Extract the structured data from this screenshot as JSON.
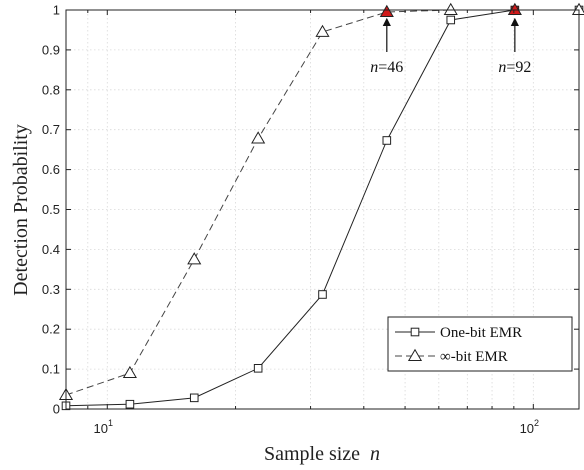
{
  "chart_data": {
    "type": "line",
    "xlabel": "Sample size",
    "xlabel_var": "n",
    "ylabel": "Detection Probability",
    "xscale": "log",
    "xlim": [
      8,
      128
    ],
    "ylim": [
      0,
      1
    ],
    "x_ticks": [
      10,
      100
    ],
    "x_tick_labels": [
      {
        "base": "10",
        "exp": "1"
      },
      {
        "base": "10",
        "exp": "2"
      }
    ],
    "y_ticks": [
      0,
      0.1,
      0.2,
      0.3,
      0.4,
      0.5,
      0.6,
      0.7,
      0.8,
      0.9,
      1
    ],
    "y_tick_labels": [
      "0",
      "0.1",
      "0.2",
      "0.3",
      "0.4",
      "0.5",
      "0.6",
      "0.7",
      "0.8",
      "0.9",
      "1"
    ],
    "grid": true,
    "legend_position": "bottom-right",
    "series": [
      {
        "name": "One-bit EMR",
        "marker": "square",
        "line_style": "solid",
        "color": "#222222",
        "x": [
          8,
          11.3,
          16,
          22.6,
          32,
          45.3,
          64,
          90.5,
          128
        ],
        "y": [
          0.008,
          0.012,
          0.028,
          0.102,
          0.287,
          0.673,
          0.975,
          1.0,
          1.0
        ]
      },
      {
        "name": "∞-bit EMR",
        "marker": "triangle",
        "line_style": "dashed",
        "color": "#444444",
        "x": [
          8,
          11.3,
          16,
          22.6,
          32,
          45.3,
          64,
          90.5,
          128
        ],
        "y": [
          0.035,
          0.09,
          0.375,
          0.678,
          0.945,
          0.995,
          1.0,
          1.0,
          1.0
        ]
      }
    ],
    "highlight_color": "#d11a1a",
    "annotations": [
      {
        "var": "n",
        "text": "=46",
        "x": 45.3,
        "y": 1.0
      },
      {
        "var": "n",
        "text": "=92",
        "x": 90.5,
        "y": 1.0
      }
    ]
  }
}
